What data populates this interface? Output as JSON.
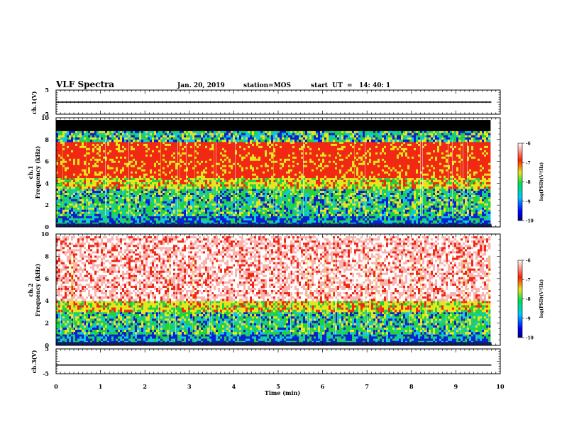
{
  "header": {
    "title": "VLF Spectra",
    "date": "Jan. 20, 2019",
    "station": "station=MOS",
    "start": "start  UT  =   14: 40: 1"
  },
  "colors": {
    "black_band": "#000000",
    "blue": "#0a1fd2",
    "cyan": "#10c8dc",
    "green": "#23d23c",
    "yellow": "#e6e61e",
    "red": "#f02814",
    "light_red": "#f9b4b0"
  },
  "chart_data": [
    {
      "type": "line",
      "name": "ch1-voltage",
      "ylabel": "ch.1(V)",
      "ylim": [
        -5,
        5
      ],
      "yticks": [
        "5",
        "-5"
      ],
      "xlim": [
        0,
        10
      ],
      "series": [
        {
          "x": [
            0,
            9.8
          ],
          "values": [
            0,
            0
          ]
        }
      ]
    },
    {
      "type": "heatmap",
      "name": "ch1-spectrogram",
      "ylabel": "ch.1\nFrequency (kHz)",
      "ylim": [
        0,
        10
      ],
      "yticks": [
        "0",
        "2",
        "4",
        "6",
        "8",
        "10"
      ],
      "xlim": [
        0,
        10
      ],
      "data_extent_min": 9.8,
      "bands_khz": [
        {
          "from": 0,
          "to": 1,
          "level": "blue-cyan"
        },
        {
          "from": 1,
          "to": 3.5,
          "level": "green-cyan"
        },
        {
          "from": 3.5,
          "to": 4.5,
          "level": "yellow-green"
        },
        {
          "from": 4.5,
          "to": 7.8,
          "level": "red"
        },
        {
          "from": 7.8,
          "to": 8.8,
          "level": "green-blue"
        },
        {
          "from": 8.8,
          "to": 9.8,
          "level": "black"
        }
      ],
      "colorbar": {
        "label": "log(PSD)(V²/Hz)",
        "ticks": [
          "-6",
          "-7",
          "-8",
          "-9",
          "-10"
        ],
        "range": [
          -10,
          -6
        ]
      }
    },
    {
      "type": "heatmap",
      "name": "ch2-spectrogram",
      "ylabel": "ch.2\nFrequency (kHz)",
      "ylim": [
        0,
        10
      ],
      "yticks": [
        "0",
        "2",
        "4",
        "6",
        "8",
        "10"
      ],
      "xlim": [
        0,
        10
      ],
      "data_extent_min": 9.8,
      "bands_khz": [
        {
          "from": 0,
          "to": 1,
          "level": "blue-cyan"
        },
        {
          "from": 1,
          "to": 3,
          "level": "green-cyan"
        },
        {
          "from": 3,
          "to": 4,
          "level": "yellow-red"
        },
        {
          "from": 4,
          "to": 9.8,
          "level": "sparse-red"
        }
      ],
      "colorbar": {
        "label": "log(PSD)(V²/Hz)",
        "ticks": [
          "-6",
          "-7",
          "-8",
          "-9",
          "-10"
        ],
        "range": [
          -10,
          -6
        ]
      }
    },
    {
      "type": "line",
      "name": "ch3-voltage",
      "ylabel": "ch.3(V)",
      "ylim": [
        -5,
        5
      ],
      "yticks": [
        "5",
        "-5"
      ],
      "xlim": [
        0,
        10
      ],
      "series": [
        {
          "x": [
            0,
            9.8
          ],
          "values": [
            -1.5,
            -1.5
          ]
        }
      ]
    }
  ],
  "xaxis": {
    "label": "Time (min)",
    "ticks": [
      "0",
      "1",
      "2",
      "3",
      "4",
      "5",
      "6",
      "7",
      "8",
      "9",
      "10"
    ]
  }
}
